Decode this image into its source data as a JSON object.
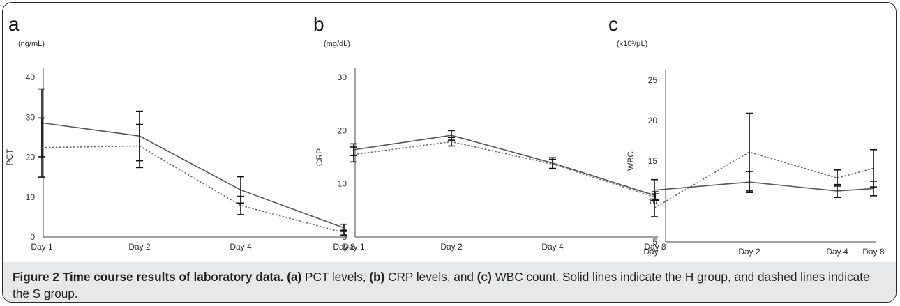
{
  "figure": {
    "caption": {
      "label": "Figure 2",
      "title": "Time course results of laboratory data.",
      "parts": [
        {
          "tag": "(a)",
          "text": " PCT levels, "
        },
        {
          "tag": "(b)",
          "text": " CRP levels, and "
        },
        {
          "tag": "(c)",
          "text": " WBC count. Solid lines indicate the H group, and dashed lines indicate the S group."
        }
      ]
    }
  },
  "chart_data": [
    {
      "type": "line",
      "panel": "a",
      "unit": "(ng/mL)",
      "ylabel": "PCT",
      "categories": [
        "Day 1",
        "Day 2",
        "Day 4",
        "Day 8"
      ],
      "ylim": [
        0,
        40
      ],
      "yticks": [
        0,
        10,
        20,
        30,
        40
      ],
      "series": [
        {
          "style": "solid",
          "values": [
            28.6,
            25.3,
            11.8,
            2.3
          ],
          "error": [
            8.5,
            6.2,
            3.3,
            0.9
          ]
        },
        {
          "style": "dashed",
          "values": [
            22.4,
            22.8,
            7.9,
            1.1
          ],
          "error": [
            7.4,
            5.4,
            2.3,
            0.6
          ]
        }
      ]
    },
    {
      "type": "line",
      "panel": "b",
      "unit": "(mg/dL)",
      "ylabel": "CRP",
      "categories": [
        "Day 1",
        "Day 2",
        "Day 4",
        "Day 8"
      ],
      "ylim": [
        0,
        30
      ],
      "yticks": [
        0,
        10,
        20,
        30
      ],
      "series": [
        {
          "style": "solid",
          "values": [
            16.4,
            19.1,
            13.9,
            7.8
          ],
          "error": [
            1.1,
            0.9,
            1.0,
            0.7
          ]
        },
        {
          "style": "dashed",
          "values": [
            15.5,
            17.9,
            13.7,
            7.5
          ],
          "error": [
            1.4,
            0.8,
            0.9,
            0.6
          ]
        }
      ]
    },
    {
      "type": "line",
      "panel": "c",
      "unit": "(x10³/μL)",
      "ylabel": "WBC",
      "categories": [
        "Day 1",
        "Day 2",
        "Day 4",
        "Day 8"
      ],
      "ylim": [
        5,
        25
      ],
      "yticks": [
        5,
        10,
        15,
        20,
        25
      ],
      "series": [
        {
          "style": "solid",
          "values": [
            11.4,
            12.4,
            11.3,
            11.6
          ],
          "error": [
            1.3,
            1.3,
            0.8,
            0.9
          ]
        },
        {
          "style": "dashed",
          "values": [
            9.2,
            16.1,
            12.9,
            14.1
          ],
          "error": [
            1.1,
            4.8,
            1.0,
            2.3
          ]
        }
      ]
    }
  ]
}
